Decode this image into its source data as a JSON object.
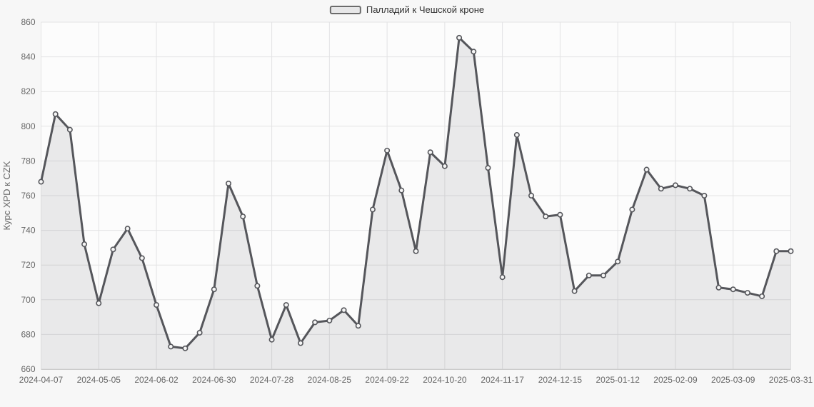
{
  "legend": {
    "label": "Палладий к Чешской кроне"
  },
  "chart_data": {
    "type": "area",
    "title": "",
    "ylabel": "Курс XPD к CZK",
    "xlabel": "",
    "ylim": [
      660,
      860
    ],
    "y_tick_step": 20,
    "y_tick_labels": [
      "660",
      "680",
      "700",
      "720",
      "740",
      "760",
      "780",
      "800",
      "820",
      "840",
      "860"
    ],
    "grid": true,
    "legend_position": "top-center",
    "marker": "hollow-circle",
    "x_tick_labels": [
      "2024-04-07",
      "2024-05-05",
      "2024-06-02",
      "2024-06-30",
      "2024-07-28",
      "2024-08-25",
      "2024-09-22",
      "2024-10-20",
      "2024-11-17",
      "2024-12-15",
      "2025-01-12",
      "2025-02-09",
      "2025-03-09",
      "2025-03-31"
    ],
    "x_tick_point_indices": [
      0,
      4,
      8,
      12,
      16,
      20,
      24,
      28,
      32,
      36,
      40,
      44,
      48,
      52
    ],
    "series": [
      {
        "name": "Палладий к Чешской кроне",
        "values": [
          768,
          807,
          798,
          732,
          698,
          729,
          741,
          724,
          697,
          673,
          672,
          681,
          706,
          767,
          748,
          708,
          677,
          697,
          675,
          687,
          688,
          694,
          685,
          752,
          786,
          763,
          728,
          785,
          777,
          851,
          843,
          776,
          713,
          795,
          760,
          748,
          749,
          705,
          714,
          714,
          722,
          752,
          775,
          764,
          766,
          764,
          760,
          707,
          706,
          704,
          702,
          728,
          728
        ]
      }
    ],
    "colors": {
      "page_bg": "#f7f7f7",
      "plot_bg": "#fcfcfc",
      "grid": "#e3e3e4",
      "axis_line": "#cccccc",
      "axis_label": "#666666",
      "axis_title": "#666666",
      "line": "#55565b",
      "fill_rgba": "rgba(85,86,91,0.11)",
      "marker_fill": "#f6f6f6",
      "legend_text": "#333333"
    }
  }
}
